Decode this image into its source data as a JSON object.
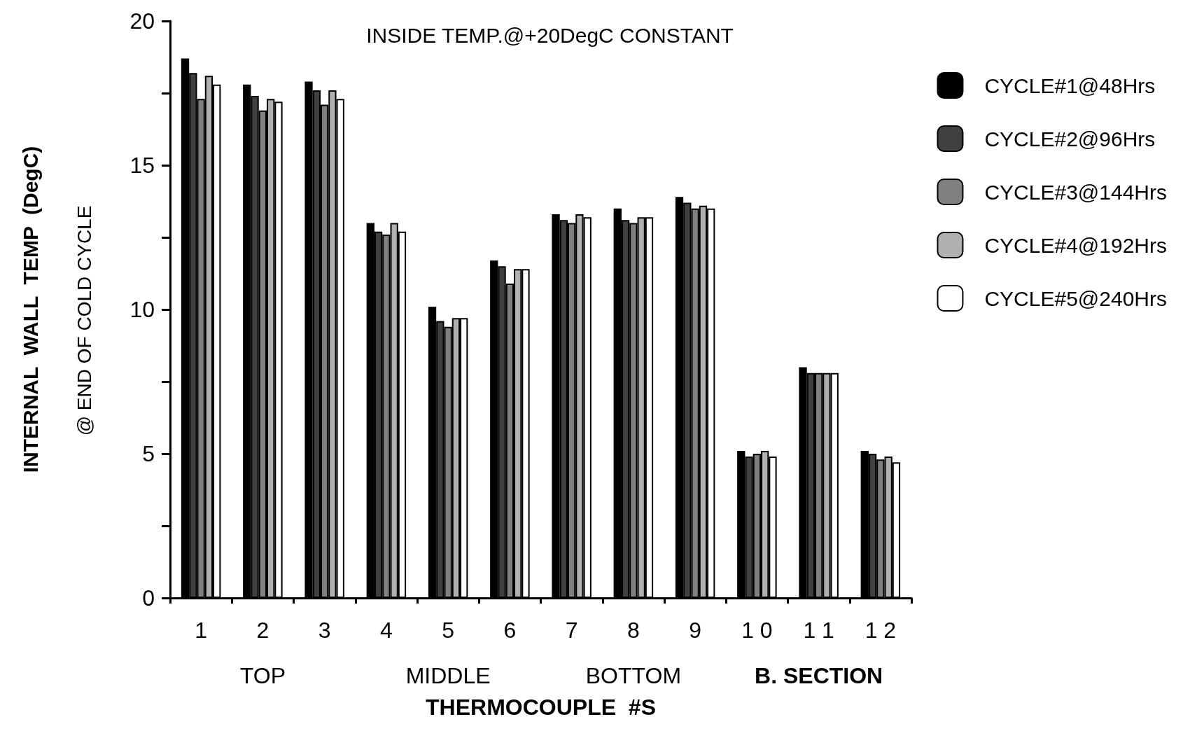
{
  "chart_data": {
    "type": "bar",
    "title": "INSIDE TEMP.@+20DegC CONSTANT",
    "xlabel": "THERMOCOUPLE  #S",
    "ylabel": "INTERNAL  WALL  TEMP  (DegC)",
    "annotations": [
      "@ END OF COLD CYCLE",
      "TOP",
      "MIDDLE",
      "BOTTOM",
      "B. SECTION"
    ],
    "categories": [
      "1",
      "2",
      "3",
      "4",
      "5",
      "6",
      "7",
      "8",
      "9",
      "1 0",
      "1 1",
      "1 2"
    ],
    "series": [
      {
        "name": "CYCLE#1@48Hrs",
        "color": "#000000",
        "values": [
          18.7,
          17.8,
          17.9,
          13.0,
          10.1,
          11.7,
          13.3,
          13.5,
          13.9,
          5.1,
          8.0,
          5.1
        ]
      },
      {
        "name": "CYCLE#2@96Hrs",
        "color": "#404040",
        "values": [
          18.2,
          17.4,
          17.6,
          12.7,
          9.6,
          11.5,
          13.1,
          13.1,
          13.7,
          4.9,
          7.8,
          5.0
        ]
      },
      {
        "name": "CYCLE#3@144Hrs",
        "color": "#808080",
        "values": [
          17.3,
          16.9,
          17.1,
          12.6,
          9.4,
          10.9,
          13.0,
          13.0,
          13.5,
          5.0,
          7.8,
          4.8
        ]
      },
      {
        "name": "CYCLE#4@192Hrs",
        "color": "#b0b0b0",
        "values": [
          18.1,
          17.3,
          17.6,
          13.0,
          9.7,
          11.4,
          13.3,
          13.2,
          13.6,
          5.1,
          7.8,
          4.9
        ]
      },
      {
        "name": "CYCLE#5@240Hrs",
        "color": "#ffffff",
        "values": [
          17.8,
          17.2,
          17.3,
          12.7,
          9.7,
          11.4,
          13.2,
          13.2,
          13.5,
          4.9,
          7.8,
          4.7
        ]
      }
    ],
    "ylim": [
      0,
      20
    ],
    "yticks": [
      0,
      {
        "value": 2.5,
        "label": null
      },
      5,
      {
        "value": 7.5,
        "label": null
      },
      10,
      {
        "value": 12.5,
        "label": null
      },
      15,
      {
        "value": 17.5,
        "label": null
      },
      20
    ],
    "grid": false,
    "legend": "right"
  }
}
